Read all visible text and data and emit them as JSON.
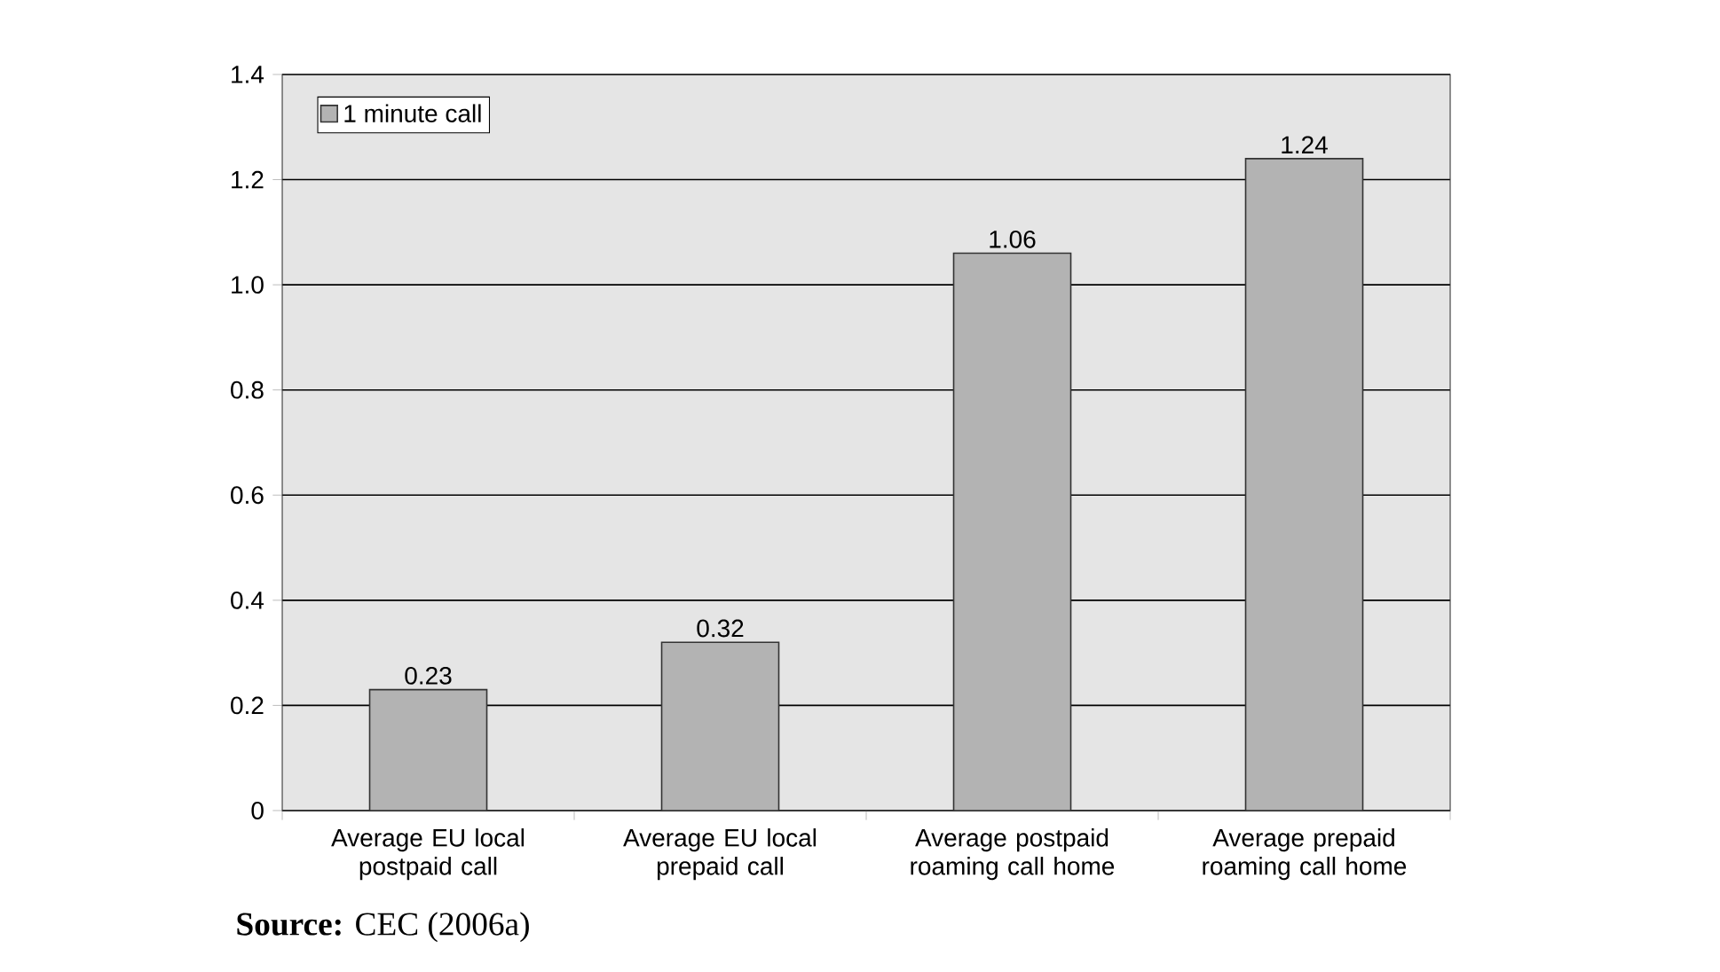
{
  "chart_data": {
    "type": "bar",
    "categories": [
      "Average EU local postpaid call",
      "Average EU local prepaid call",
      "Average postpaid roaming call home",
      "Average prepaid roaming call home"
    ],
    "series": [
      {
        "name": "1 minute call",
        "color": "#b3b3b3",
        "values": [
          0.23,
          0.32,
          1.06,
          1.24
        ]
      }
    ],
    "ylim": [
      0,
      1.4
    ],
    "yticks": [
      0,
      0.2,
      0.4,
      0.6,
      0.8,
      {
        "value": 1,
        "label": "1.0"
      },
      1.2,
      1.4
    ],
    "grid": "y",
    "legend": "top left",
    "data_labels": true,
    "annotations": [
      "**Source:** CEC (2006a)"
    ]
  }
}
